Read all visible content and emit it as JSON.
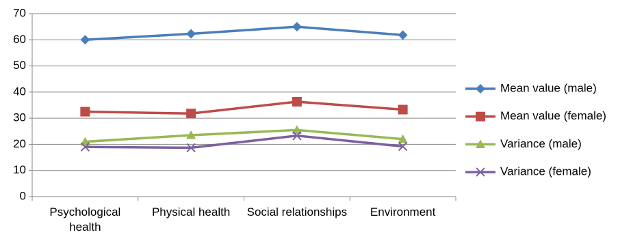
{
  "chart_data": {
    "type": "line",
    "categories": [
      "Psychological health",
      "Physical health",
      "Social relationships",
      "Environment"
    ],
    "series": [
      {
        "name": "Mean value (male)",
        "color": "#4a7ebb",
        "marker": "diamond",
        "values": [
          60,
          62.3,
          65,
          61.8
        ]
      },
      {
        "name": "Mean value (female)",
        "color": "#be4b48",
        "marker": "square",
        "values": [
          32.5,
          31.8,
          36.3,
          33.3
        ]
      },
      {
        "name": "Variance (male)",
        "color": "#98b954",
        "marker": "triangle",
        "values": [
          21,
          23.5,
          25.5,
          22
        ]
      },
      {
        "name": "Variance (female)",
        "color": "#7d60a0",
        "marker": "x",
        "values": [
          19,
          18.7,
          23.3,
          19.2
        ]
      }
    ],
    "ylim": [
      0,
      70
    ],
    "yticks": [
      0,
      10,
      20,
      30,
      40,
      50,
      60,
      70
    ],
    "grid": true,
    "legend": "right"
  }
}
